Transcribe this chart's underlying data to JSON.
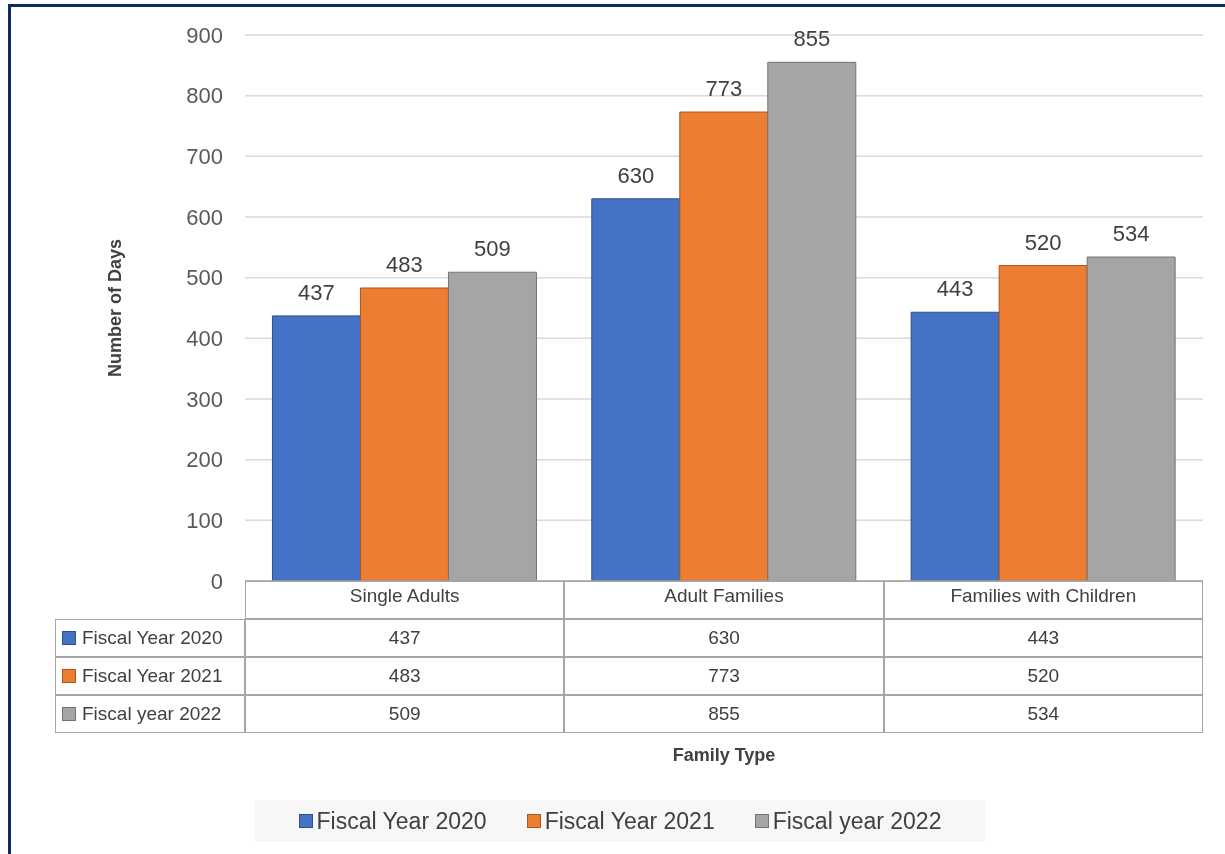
{
  "chart_data": [
    {
      "type": "bar",
      "categories": [
        "Single Adults",
        "Adult Families",
        "Families with Children"
      ],
      "series": [
        {
          "name": "Fiscal Year 2020",
          "color": "#4472c4",
          "values": [
            437,
            630,
            443
          ],
          "value_labels": [
            "437",
            "630",
            "443"
          ]
        },
        {
          "name": "Fiscal Year 2021",
          "color": "#ed7d31",
          "values": [
            483,
            773,
            520
          ],
          "value_labels": [
            "483",
            "773",
            "520"
          ]
        },
        {
          "name": "Fiscal year 2022",
          "color": "#a5a5a5",
          "values": [
            509,
            855,
            534
          ],
          "value_labels": [
            "509",
            "855",
            "534"
          ]
        }
      ],
      "ylabel": "Number of Days",
      "ylim": [
        0,
        900
      ],
      "yticks": [
        0,
        100,
        200,
        300,
        400,
        500,
        600,
        700,
        800,
        900
      ],
      "grid": "y",
      "legend": "bottom"
    },
    {
      "type": "other",
      "series": [
        {
          "name": "Fiscal Year 2020",
          "color": "#4472c4",
          "values": [
            null,
            null,
            null
          ],
          "value_labels": [
            "437",
            "630",
            "443"
          ]
        },
        {
          "name": "Fiscal Year 2021",
          "color": "#ed7d31",
          "values": [
            null,
            null,
            null
          ],
          "value_labels": [
            "483",
            "773",
            "520"
          ]
        },
        {
          "name": "Fiscal year 2022",
          "color": "#a5a5a5",
          "values": [
            null,
            null,
            null
          ],
          "value_labels": [
            "509",
            "855",
            "534"
          ]
        }
      ],
      "xlabel": "Family Type"
    }
  ]
}
